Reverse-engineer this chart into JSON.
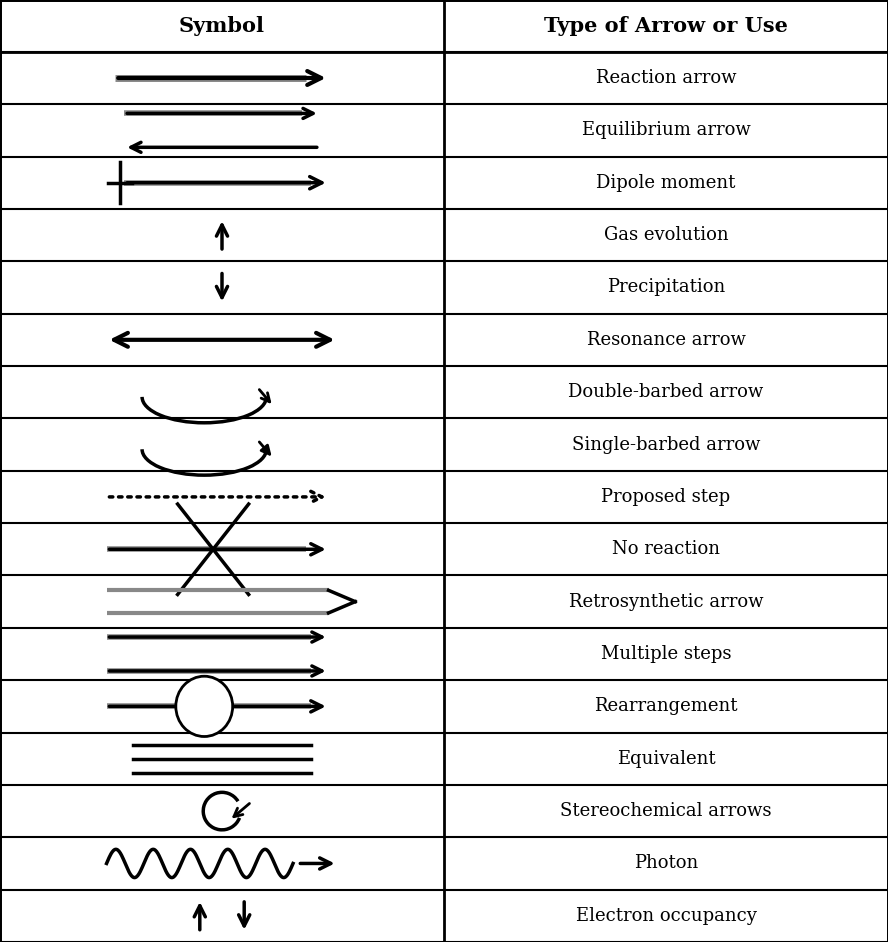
{
  "title_left": "Symbol",
  "title_right": "Type of Arrow or Use",
  "rows": [
    {
      "label": "Reaction arrow"
    },
    {
      "label": "Equilibrium arrow"
    },
    {
      "label": "Dipole moment"
    },
    {
      "label": "Gas evolution"
    },
    {
      "label": "Precipitation"
    },
    {
      "label": "Resonance arrow"
    },
    {
      "label": "Double-barbed arrow"
    },
    {
      "label": "Single-barbed arrow"
    },
    {
      "label": "Proposed step"
    },
    {
      "label": "No reaction"
    },
    {
      "label": "Retrosynthetic arrow"
    },
    {
      "label": "Multiple steps"
    },
    {
      "label": "Rearrangement"
    },
    {
      "label": "Equivalent"
    },
    {
      "label": "Stereochemical arrows"
    },
    {
      "label": "Photon"
    },
    {
      "label": "Electron occupancy"
    }
  ],
  "col_split": 0.5,
  "bg_color": "#ffffff",
  "line_color": "#000000",
  "header_bg": "#ffffff",
  "font_size": 13,
  "title_font_size": 15
}
